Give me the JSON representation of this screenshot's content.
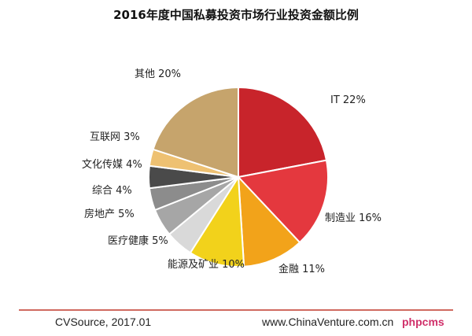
{
  "chart_data": {
    "type": "pie",
    "title": "2016年度中国私募投资市场行业投资金额比例",
    "slices": [
      {
        "label": "IT 22%",
        "value": 22,
        "color": "#c8242b"
      },
      {
        "label": "制造业 16%",
        "value": 16,
        "color": "#e4383e"
      },
      {
        "label": "金融 11%",
        "value": 11,
        "color": "#f2a31a"
      },
      {
        "label": "能源及矿业 10%",
        "value": 10,
        "color": "#f2d21b"
      },
      {
        "label": "医疗健康 5%",
        "value": 5,
        "color": "#d9d9d9"
      },
      {
        "label": "房地产 5%",
        "value": 5,
        "color": "#a6a6a6"
      },
      {
        "label": "综合 4%",
        "value": 4,
        "color": "#8c8c8c"
      },
      {
        "label": "文化传媒 4%",
        "value": 4,
        "color": "#4a4a4a"
      },
      {
        "label": "互联网 3%",
        "value": 3,
        "color": "#eec172"
      },
      {
        "label": "其他 20%",
        "value": 20,
        "color": "#c6a46c"
      }
    ],
    "legend": "none"
  },
  "footer": {
    "source": "CVSource, 2017.01",
    "website": "www.ChinaVenture.com.cn",
    "watermark": "phpcms"
  },
  "colors": {
    "rule": "#c0392b"
  }
}
